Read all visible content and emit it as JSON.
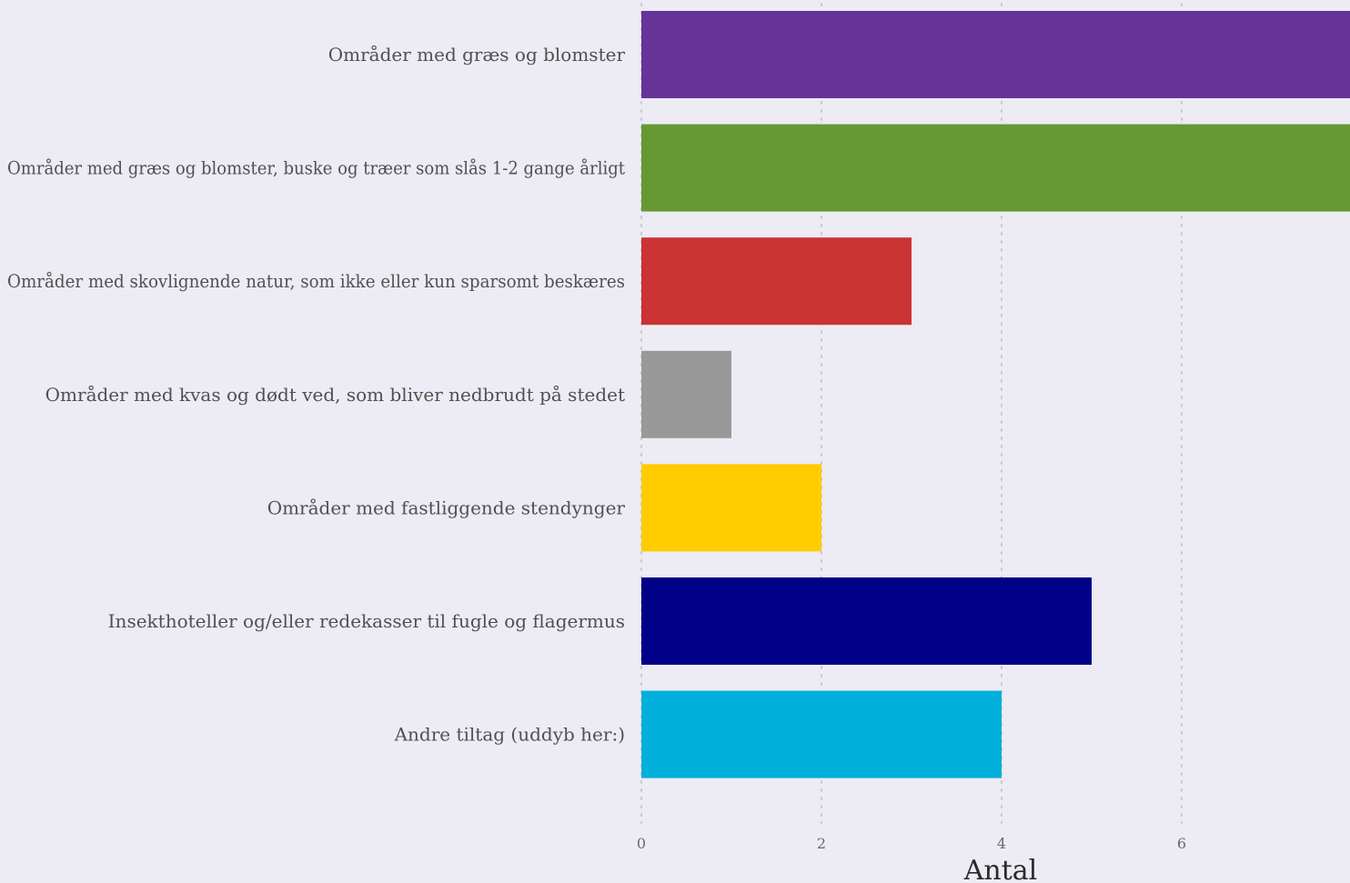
{
  "chart_data": {
    "type": "bar",
    "orientation": "horizontal",
    "title": "",
    "xlabel": "Antal",
    "ylabel": "",
    "categories": [
      "Områder med græs og blomster",
      "Områder med græs og blomster, buske og træer som slås 1-2 gange årligt",
      "Områder med skovlignende natur, som ikke eller kun sparsomt beskæres",
      "Områder med kvas og dødt ved, som bliver nedbrudt på stedet",
      "Områder med fastliggende stendynger",
      "Insekthoteller og/eller redekasser til fugle og flagermus",
      "Andre tiltag (uddyb her:)"
    ],
    "values": [
      8,
      8,
      3,
      1,
      2,
      5,
      4
    ],
    "colors": [
      "#663399",
      "#669933",
      "#cc3333",
      "#999999",
      "#ffcc00",
      "#000088",
      "#00b0da"
    ],
    "xlim": [
      0,
      7.85
    ],
    "xticks": [
      "0",
      "2",
      "4",
      "6"
    ],
    "grid": true,
    "background": "#edebf3",
    "legend": "none"
  }
}
